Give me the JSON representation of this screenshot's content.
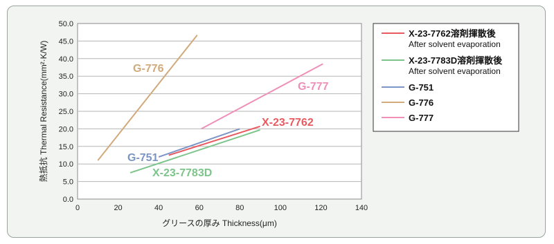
{
  "chart_data": {
    "type": "line",
    "xlabel": "グリースの厚み Thickness(μm)",
    "ylabel": "熱抵抗 Thermal Resistance(mm²·K/W)",
    "xlim": [
      0,
      140
    ],
    "ylim": [
      0,
      50
    ],
    "x_ticks": [
      "0",
      "20",
      "40",
      "60",
      "80",
      "100",
      "120",
      "140"
    ],
    "y_ticks": [
      "0.0",
      "5.0",
      "10.0",
      "15.0",
      "20.0",
      "25.0",
      "30.0",
      "35.0",
      "40.0",
      "45.0",
      "50.0"
    ],
    "grid": "horizontal",
    "legend_position": "right",
    "series": [
      {
        "name": "X-23-7762",
        "legend_main": "X-23-7762溶剤揮散後",
        "legend_sub": "After solvent evaporation",
        "label": "X-23-7762",
        "color": "#e85a60",
        "x": [
          45,
          90
        ],
        "y": [
          12.5,
          20.7
        ]
      },
      {
        "name": "X-23-7783D",
        "legend_main": "X-23-7783D溶剤揮散後",
        "legend_sub": "After solvent evaporation",
        "label": "X-23-7783D",
        "color": "#7cc48a",
        "x": [
          26,
          90
        ],
        "y": [
          7.5,
          19.7
        ]
      },
      {
        "name": "G-751",
        "legend_main": "G-751",
        "legend_sub": "",
        "label": "G-751",
        "color": "#7b94c6",
        "x": [
          40,
          80
        ],
        "y": [
          12.0,
          20.0
        ]
      },
      {
        "name": "G-776",
        "legend_main": "G-776",
        "legend_sub": "",
        "label": "G-776",
        "color": "#d2a97a",
        "x": [
          10,
          59
        ],
        "y": [
          11.0,
          46.7
        ]
      },
      {
        "name": "G-777",
        "legend_main": "G-777",
        "legend_sub": "",
        "label": "G-777",
        "color": "#ef8fb8",
        "x": [
          61,
          121
        ],
        "y": [
          20.0,
          38.5
        ]
      }
    ]
  }
}
